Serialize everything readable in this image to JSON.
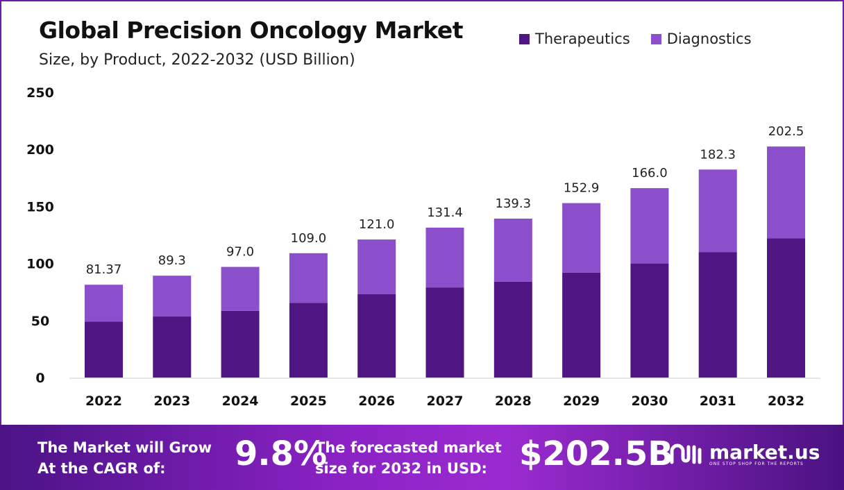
{
  "chart_data": {
    "type": "bar",
    "stacked": true,
    "title": "Global Precision Oncology Market",
    "subtitle": "Size, by Product, 2022-2032 (USD Billion)",
    "categories": [
      "2022",
      "2023",
      "2024",
      "2025",
      "2026",
      "2027",
      "2028",
      "2029",
      "2030",
      "2031",
      "2032"
    ],
    "series": [
      {
        "name": "Therapeutics",
        "color": "#4f1683",
        "values": [
          49.0,
          53.5,
          58.5,
          65.5,
          73.0,
          79.0,
          84.0,
          92.0,
          100.0,
          110.0,
          122.0
        ]
      },
      {
        "name": "Diagnostics",
        "color": "#8b4fcb",
        "values": [
          32.37,
          35.8,
          38.5,
          43.5,
          48.0,
          52.4,
          55.3,
          60.9,
          66.0,
          72.3,
          80.5
        ]
      }
    ],
    "total_labels": [
      "81.37",
      "89.3",
      "97.0",
      "109.0",
      "121.0",
      "131.4",
      "139.3",
      "152.9",
      "166.0",
      "182.3",
      "202.5"
    ],
    "yticks": [
      0,
      50,
      100,
      150,
      200,
      250
    ],
    "ylim": [
      0,
      250
    ],
    "xlabel": "",
    "ylabel": "",
    "grid": false,
    "legend": "top-right"
  },
  "footer": {
    "cagr_label_1": "The Market will Grow",
    "cagr_label_2": "At the CAGR of:",
    "cagr_value": "9.8%",
    "forecast_label_1": "The forecasted market",
    "forecast_label_2": "size for 2032 in USD:",
    "forecast_value": "$202.5B",
    "logo_text": "market.us",
    "logo_tagline": "ONE STOP SHOP FOR THE REPORTS"
  }
}
